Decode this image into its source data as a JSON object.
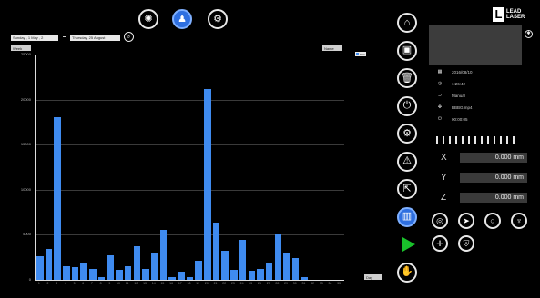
{
  "top_toolbar": {
    "buttons": [
      {
        "name": "laser-icon"
      },
      {
        "name": "chart-person-icon",
        "active": true
      },
      {
        "name": "settings-box-icon"
      }
    ]
  },
  "filter": {
    "from_value": "Sunday , 1 May , 2",
    "to_value": "Thursday, 25 August"
  },
  "chart_controls": {
    "left_select": "Week",
    "right_select": "Name",
    "legend_label": "Path",
    "bottom_right_select": "Day"
  },
  "chart_data": {
    "type": "bar",
    "ylim": [
      0,
      25000
    ],
    "yticks": [
      "0",
      "5000",
      "10000",
      "15000",
      "20000",
      "25000"
    ],
    "categories": [
      "1",
      "2",
      "3",
      "4",
      "5",
      "6",
      "7",
      "8",
      "9",
      "10",
      "11",
      "12",
      "13",
      "14",
      "15",
      "16",
      "17",
      "18",
      "19",
      "20",
      "21",
      "22",
      "23",
      "24",
      "25",
      "26",
      "27",
      "28",
      "29",
      "30",
      "31",
      "32",
      "33",
      "34",
      "35"
    ],
    "values": [
      2600,
      3400,
      18000,
      1500,
      1400,
      1800,
      1200,
      300,
      2700,
      1100,
      1500,
      3700,
      1200,
      2900,
      5500,
      300,
      900,
      300,
      2100,
      21200,
      6400,
      3200,
      1100,
      4400,
      1000,
      1200,
      1800,
      5000,
      2900,
      2400,
      300,
      0,
      0,
      0,
      0
    ],
    "series_color": "#3f8bf0"
  },
  "right_nav": [
    {
      "name": "home-icon",
      "glyph": "⌂"
    },
    {
      "name": "image-icon",
      "glyph": "▣"
    },
    {
      "name": "trash-icon",
      "glyph": "🗑"
    },
    {
      "name": "power-icon",
      "glyph": "⏻"
    },
    {
      "name": "laser-tool-icon",
      "glyph": "⚙"
    },
    {
      "name": "warning-icon",
      "glyph": "⚠"
    },
    {
      "name": "export-icon",
      "glyph": "⇱"
    },
    {
      "name": "stats-icon",
      "glyph": "▥",
      "active": true
    },
    {
      "name": "play-icon"
    },
    {
      "name": "hand-icon",
      "glyph": "✋"
    }
  ],
  "brand": {
    "logo_letter": "L",
    "logo_line1": "LEAD",
    "logo_line2": "LASER"
  },
  "info": {
    "date": "2016/08/10",
    "time": "1:26:42",
    "mode": "Manual",
    "file": "BBBG.mp4",
    "duration": "00:00:05"
  },
  "axes": [
    {
      "label": "X",
      "value": "0.000 mm"
    },
    {
      "label": "Y",
      "value": "0.000 mm"
    },
    {
      "label": "Z",
      "value": "0.000 mm"
    }
  ],
  "tool_buttons": [
    {
      "name": "target-icon",
      "glyph": "◎"
    },
    {
      "name": "laser-beam-icon",
      "glyph": "➤"
    },
    {
      "name": "circle-icon",
      "glyph": "○"
    },
    {
      "name": "pin-icon",
      "glyph": "♆"
    },
    {
      "name": "crosshair-icon",
      "glyph": "✛"
    },
    {
      "name": "shield-icon",
      "glyph": "⛨"
    }
  ]
}
